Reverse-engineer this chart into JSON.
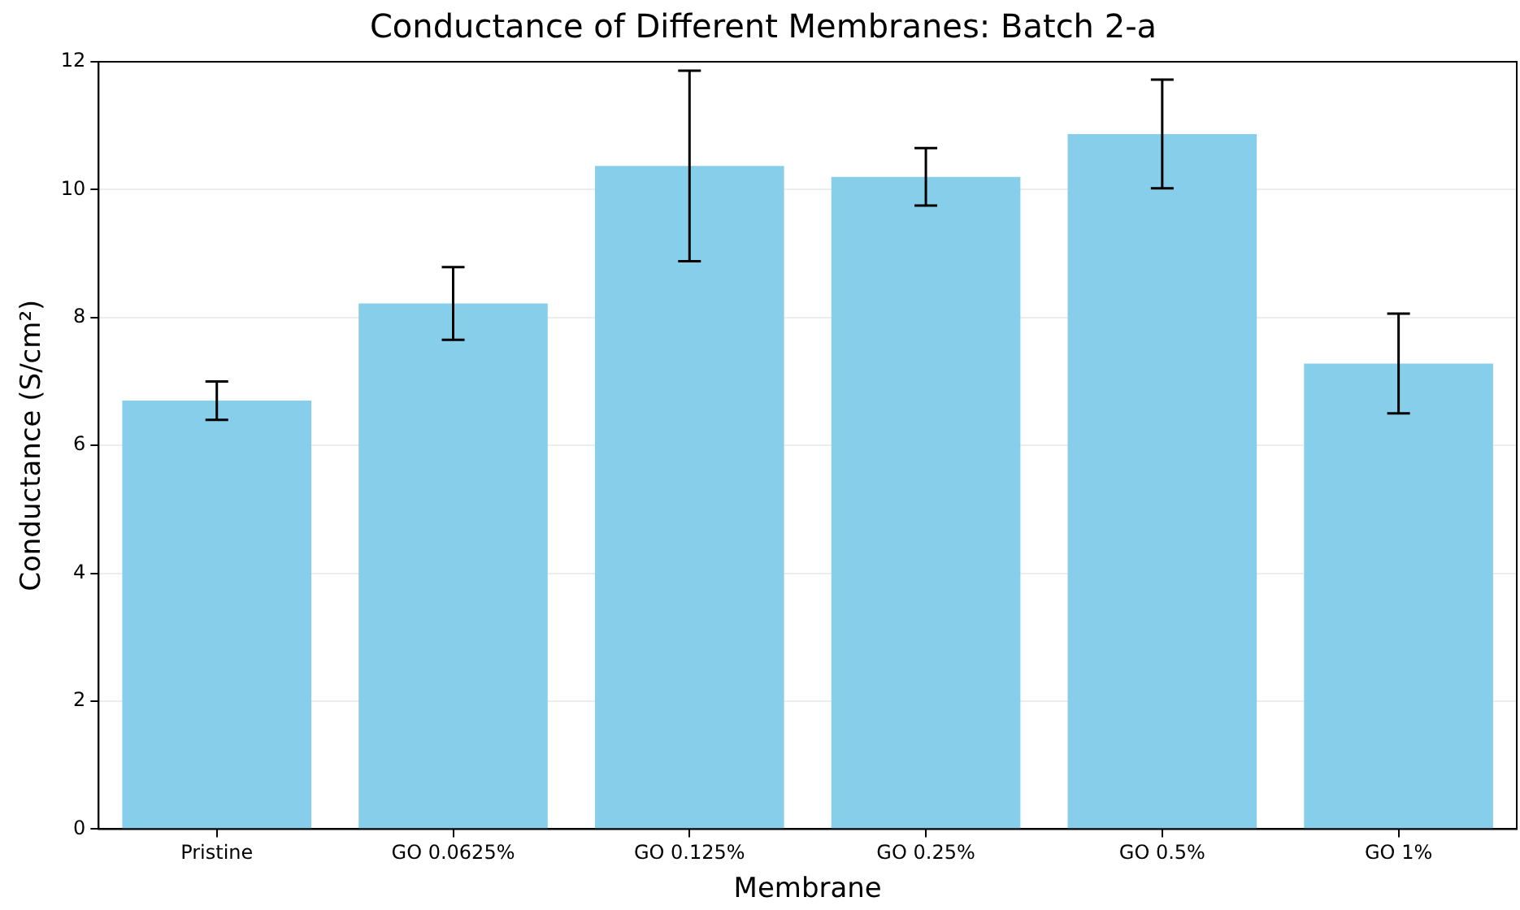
{
  "chart_data": {
    "type": "bar",
    "title": "Conductance of Different Membranes: Batch 2-a",
    "xlabel": "Membrane",
    "ylabel": "Conductance (S/cm²)",
    "categories": [
      "Pristine",
      "GO 0.0625%",
      "GO 0.125%",
      "GO 0.25%",
      "GO 0.5%",
      "GO 1%"
    ],
    "values": [
      6.7,
      8.22,
      10.37,
      10.2,
      10.87,
      7.28
    ],
    "errors": [
      0.3,
      0.57,
      1.49,
      0.45,
      0.85,
      0.78
    ],
    "color": "#87ceeb",
    "ylim": [
      0,
      12
    ],
    "yticks": [
      0,
      2,
      4,
      6,
      8,
      10,
      12
    ],
    "grid": "y"
  }
}
